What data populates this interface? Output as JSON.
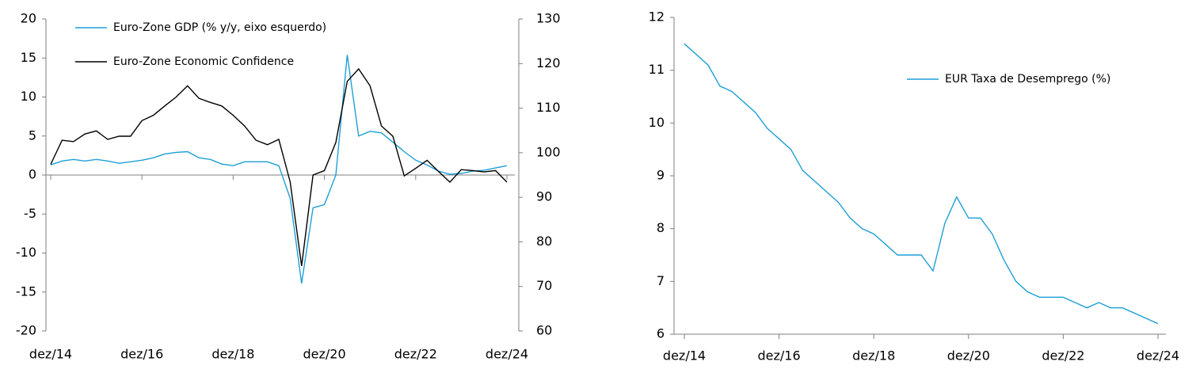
{
  "chart_data": [
    {
      "type": "line",
      "categories": [
        "dez/14",
        null,
        null,
        null,
        null,
        null,
        null,
        null,
        "dez/16",
        null,
        null,
        null,
        null,
        null,
        null,
        null,
        "dez/18",
        null,
        null,
        null,
        null,
        null,
        null,
        null,
        "dez/20",
        null,
        null,
        null,
        null,
        null,
        null,
        null,
        "dez/22",
        null,
        null,
        null,
        null,
        null,
        null,
        null,
        "dez/24"
      ],
      "series": [
        {
          "name": "Euro-Zone GDP (% y/y, eixo esquerdo)",
          "color": "#1f9fd6",
          "values": [
            1.3,
            1.8,
            2.0,
            1.8,
            2.0,
            1.8,
            1.5,
            1.7,
            1.9,
            2.2,
            2.7,
            2.9,
            3.0,
            2.2,
            2.0,
            1.4,
            1.2,
            1.7,
            1.7,
            1.7,
            1.2,
            -3.0,
            -13.9,
            -4.2,
            -3.8,
            0.0,
            15.4,
            5.0,
            5.6,
            5.4,
            4.2,
            3.0,
            1.9,
            1.3,
            0.5,
            0.1,
            0.2,
            0.5,
            0.6,
            0.9,
            1.2
          ]
        },
        {
          "name": "Euro-Zone Economic Confidence",
          "color": "#000000",
          "axis": "y2",
          "values": [
            97.4,
            102.8,
            102.5,
            104.2,
            104.9,
            103.0,
            103.7,
            103.7,
            107.2,
            108.4,
            110.5,
            112.5,
            115.0,
            112.2,
            111.3,
            110.5,
            108.4,
            106.0,
            102.8,
            101.8,
            103.0,
            93.4,
            74.6,
            95.0,
            96.0,
            102.3,
            116.0,
            118.8,
            115.0,
            106.0,
            103.7,
            94.8,
            96.5,
            98.3,
            95.8,
            93.4,
            96.2,
            96.0,
            95.7,
            96.0,
            93.4
          ]
        }
      ],
      "ylim": [
        -20,
        20
      ],
      "yticks": [
        -20,
        -15,
        -10,
        -5,
        0,
        5,
        10,
        15,
        20
      ],
      "y2lim": [
        60,
        130
      ],
      "y2ticks": [
        60,
        70,
        80,
        90,
        100,
        110,
        120,
        130
      ],
      "grid": false,
      "legend": "top-left"
    },
    {
      "type": "line",
      "categories": [
        "dez/14",
        null,
        null,
        null,
        null,
        null,
        null,
        null,
        "dez/16",
        null,
        null,
        null,
        null,
        null,
        null,
        null,
        "dez/18",
        null,
        null,
        null,
        null,
        null,
        null,
        null,
        "dez/20",
        null,
        null,
        null,
        null,
        null,
        null,
        null,
        "dez/22",
        null,
        null,
        null,
        null,
        null,
        null,
        null,
        "dez/24"
      ],
      "series": [
        {
          "name": "EUR Taxa de Desemprego (%)",
          "color": "#1f9fd6",
          "values": [
            11.5,
            11.3,
            11.1,
            10.7,
            10.6,
            10.4,
            10.2,
            9.9,
            9.7,
            9.5,
            9.1,
            8.9,
            8.7,
            8.5,
            8.2,
            8.0,
            7.9,
            7.7,
            7.5,
            7.5,
            7.5,
            7.2,
            8.1,
            8.6,
            8.2,
            8.2,
            7.9,
            7.4,
            7.0,
            6.8,
            6.7,
            6.7,
            6.7,
            6.6,
            6.5,
            6.6,
            6.5,
            6.5,
            6.4,
            6.3,
            6.2
          ]
        }
      ],
      "ylim": [
        6,
        12
      ],
      "yticks": [
        6,
        7,
        8,
        9,
        10,
        11,
        12
      ],
      "grid": false,
      "legend": "top-right"
    }
  ]
}
